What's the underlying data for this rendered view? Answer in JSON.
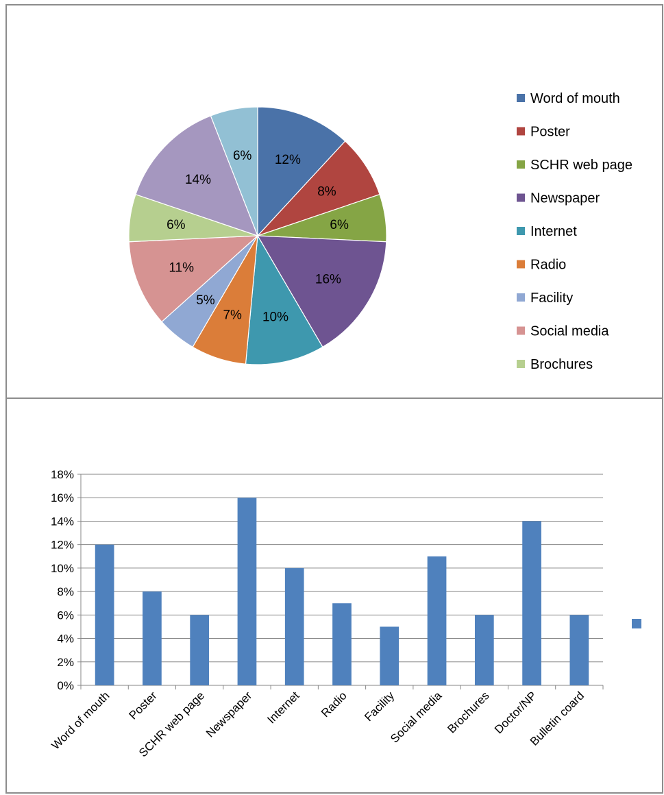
{
  "chart_data": [
    {
      "type": "pie",
      "labels": [
        "Word of mouth",
        "Poster",
        "SCHR web page",
        "Newspaper",
        "Internet",
        "Radio",
        "Facility",
        "Social media",
        "Brochures",
        "Doctor/NP",
        "Bulletin coard"
      ],
      "values": [
        12,
        8,
        6,
        16,
        10,
        7,
        5,
        11,
        6,
        14,
        6
      ],
      "slice_labels": [
        "12%",
        "8%",
        "6%",
        "16%",
        "10%",
        "7%",
        "5%",
        "11%",
        "6%",
        "14%",
        "6%"
      ],
      "legend_entries": [
        "Word of mouth",
        "Poster",
        "SCHR web page",
        "Newspaper",
        "Internet",
        "Radio",
        "Facility",
        "Social media",
        "Brochures"
      ],
      "legend_position": "right",
      "colors": [
        "#4a72a8",
        "#b04540",
        "#85a545",
        "#6e5491",
        "#3e98ae",
        "#db7d39",
        "#90a8d3",
        "#d69392",
        "#b6cf8f",
        "#a597bf",
        "#92c0d4"
      ]
    },
    {
      "type": "bar",
      "categories": [
        "Word of mouth",
        "Poster",
        "SCHR web page",
        "Newspaper",
        "Internet",
        "Radio",
        "Facility",
        "Social media",
        "Brochures",
        "Doctor/NP",
        "Bulletin coard"
      ],
      "values": [
        12,
        8,
        6,
        16,
        10,
        7,
        5,
        11,
        6,
        14,
        6
      ],
      "ylim": [
        0,
        18
      ],
      "y_ticks": [
        "0%",
        "2%",
        "4%",
        "6%",
        "8%",
        "10%",
        "12%",
        "14%",
        "16%",
        "18%"
      ],
      "grid": true,
      "legend_position": "right",
      "bar_color": "#4f81bd"
    }
  ]
}
